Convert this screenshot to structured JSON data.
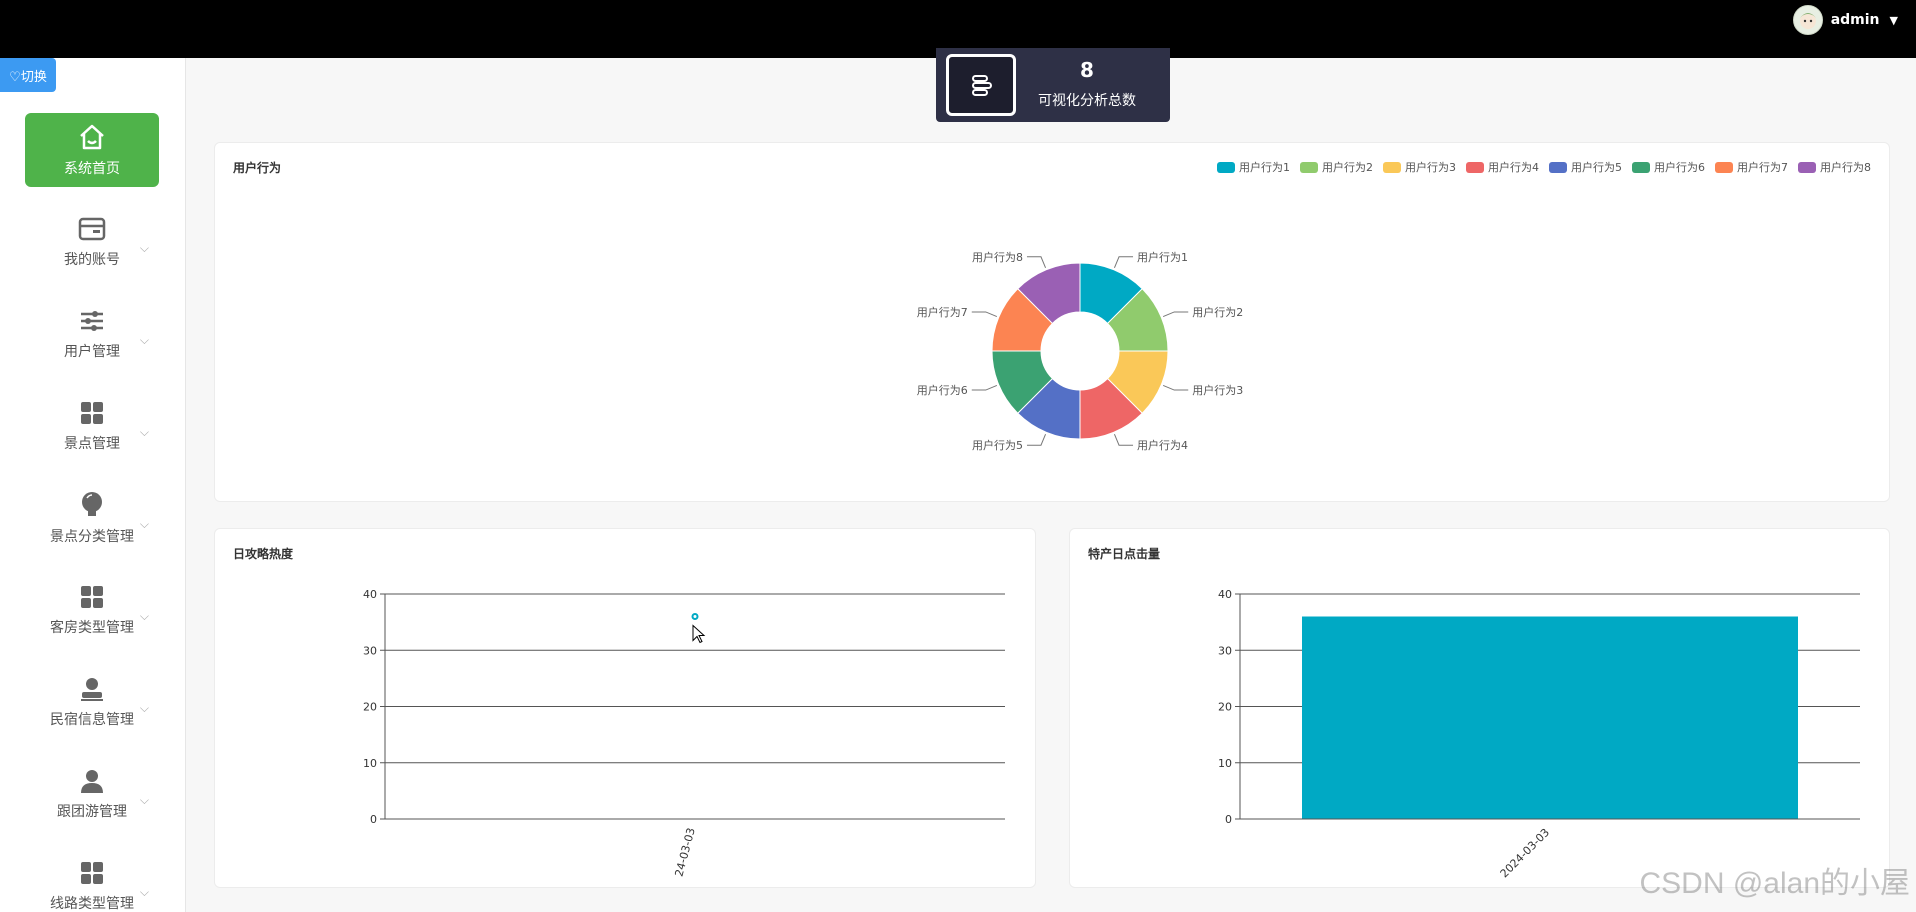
{
  "header": {
    "username": "admin",
    "caret": "▼"
  },
  "sidebar": {
    "switch_label": "♡切换",
    "items": [
      {
        "label": "系统首页",
        "icon": "home-icon"
      },
      {
        "label": "我的账号",
        "icon": "card-icon"
      },
      {
        "label": "用户管理",
        "icon": "sliders-icon"
      },
      {
        "label": "景点管理",
        "icon": "grid-icon"
      },
      {
        "label": "景点分类管理",
        "icon": "bulb-icon"
      },
      {
        "label": "客房类型管理",
        "icon": "grid-icon"
      },
      {
        "label": "民宿信息管理",
        "icon": "stamp-icon"
      },
      {
        "label": "跟团游管理",
        "icon": "user-icon"
      },
      {
        "label": "线路类型管理",
        "icon": "grid-icon"
      }
    ],
    "chevron": "⌵"
  },
  "stat": {
    "value": "8",
    "label": "可视化分析总数",
    "icon": "list-icon"
  },
  "colors": {
    "accent_green": "#4fb34a",
    "stat_bg": "#2e3046",
    "bar": "#00a9c4"
  },
  "chart_data": [
    {
      "type": "pie",
      "title": "用户行为",
      "labels": [
        "用户行为1",
        "用户行为2",
        "用户行为3",
        "用户行为4",
        "用户行为5",
        "用户行为6",
        "用户行为7",
        "用户行为8"
      ],
      "values": [
        1,
        1,
        1,
        1,
        1,
        1,
        1,
        1
      ],
      "colors": [
        "#00a9c4",
        "#90cb6d",
        "#fac858",
        "#ee6666",
        "#5470c6",
        "#3ba272",
        "#fc8452",
        "#9a60b4"
      ],
      "legend": "top-right"
    },
    {
      "type": "scatter",
      "title": "日攻略热度",
      "x": [
        "2024-03-03"
      ],
      "values": [
        36
      ],
      "xtick_visible": "24-03-03",
      "ylim": [
        0,
        40
      ],
      "yticks": [
        0,
        10,
        20,
        30,
        40
      ],
      "grid": true,
      "color": "#00a9c4"
    },
    {
      "type": "bar",
      "title": "特产日点击量",
      "categories": [
        "2024-03-03"
      ],
      "values": [
        36
      ],
      "ylim": [
        0,
        40
      ],
      "yticks": [
        0,
        10,
        20,
        30,
        40
      ],
      "grid": true,
      "color": "#00a9c4"
    }
  ],
  "watermark": "CSDN @alan的小屋"
}
